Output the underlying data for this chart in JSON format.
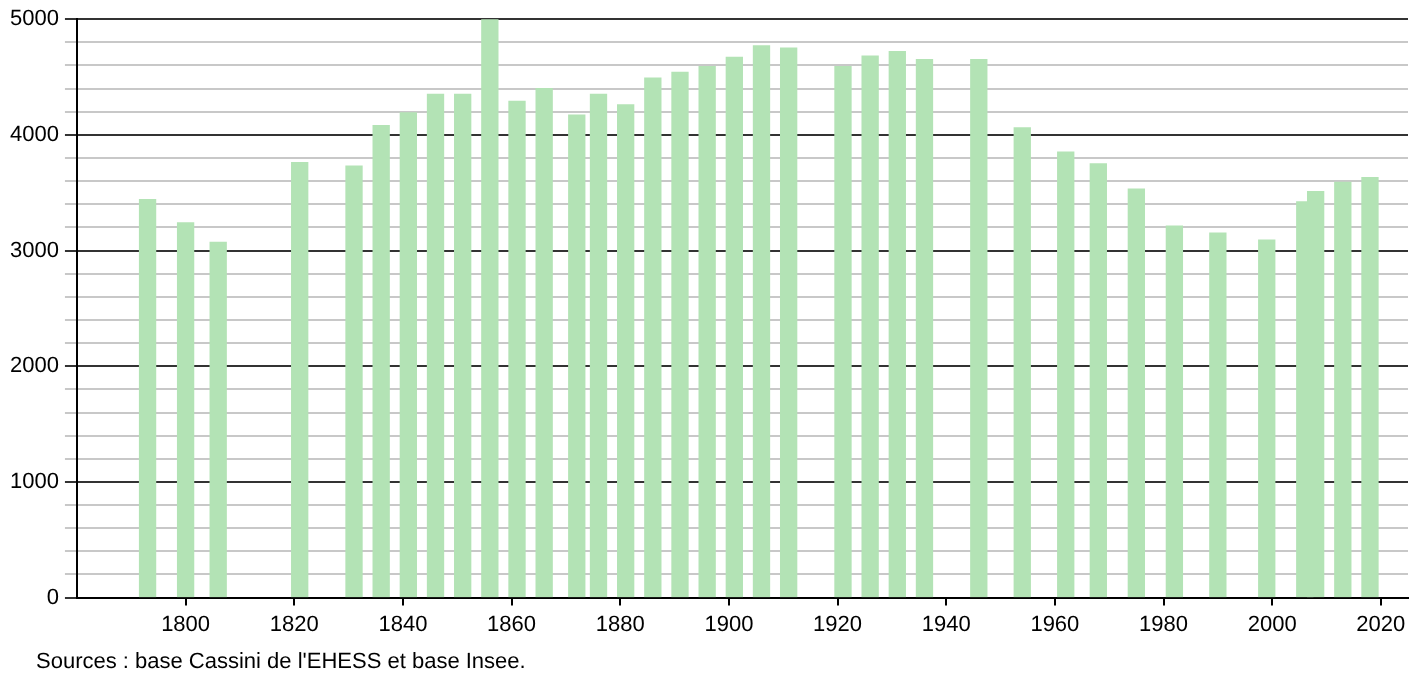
{
  "chart_data": {
    "type": "bar",
    "color": "#b3e3b5",
    "x": [
      1793,
      1800,
      1806,
      1821,
      1831,
      1836,
      1841,
      1846,
      1851,
      1856,
      1861,
      1866,
      1872,
      1876,
      1881,
      1886,
      1891,
      1896,
      1901,
      1906,
      1911,
      1921,
      1926,
      1931,
      1936,
      1946,
      1954,
      1962,
      1968,
      1975,
      1982,
      1990,
      1999,
      2006,
      2008,
      2013,
      2018
    ],
    "values": [
      3440,
      3240,
      3070,
      3760,
      3730,
      4080,
      4190,
      4350,
      4350,
      5000,
      4290,
      4400,
      4170,
      4350,
      4260,
      4490,
      4540,
      4590,
      4670,
      4770,
      4750,
      4590,
      4680,
      4720,
      4650,
      4650,
      4060,
      3850,
      3750,
      3530,
      3210,
      3150,
      3090,
      3420,
      3510,
      3590,
      3630
    ],
    "xlim": [
      1780,
      2025
    ],
    "xticks": [
      1800,
      1820,
      1840,
      1860,
      1880,
      1900,
      1920,
      1940,
      1960,
      1980,
      2000,
      2020
    ],
    "ylim": [
      0,
      5000
    ],
    "yticks": [
      0,
      {
        "value": 200,
        "label": null
      },
      {
        "value": 400,
        "label": null
      },
      {
        "value": 600,
        "label": null
      },
      {
        "value": 800,
        "label": null
      },
      1000,
      {
        "value": 1200,
        "label": null
      },
      {
        "value": 1400,
        "label": null
      },
      {
        "value": 1600,
        "label": null
      },
      {
        "value": 1800,
        "label": null
      },
      2000,
      {
        "value": 2200,
        "label": null
      },
      {
        "value": 2400,
        "label": null
      },
      {
        "value": 2600,
        "label": null
      },
      {
        "value": 2800,
        "label": null
      },
      3000,
      {
        "value": 3200,
        "label": null
      },
      {
        "value": 3400,
        "label": null
      },
      {
        "value": 3600,
        "label": null
      },
      {
        "value": 3800,
        "label": null
      },
      4000,
      {
        "value": 4200,
        "label": null
      },
      {
        "value": 4400,
        "label": null
      },
      {
        "value": 4600,
        "label": null
      },
      {
        "value": 4800,
        "label": null
      },
      5000
    ],
    "grid": "y",
    "legend": false,
    "annotations": [
      "Sources : base Cassini de l'EHESS et base Insee."
    ]
  }
}
